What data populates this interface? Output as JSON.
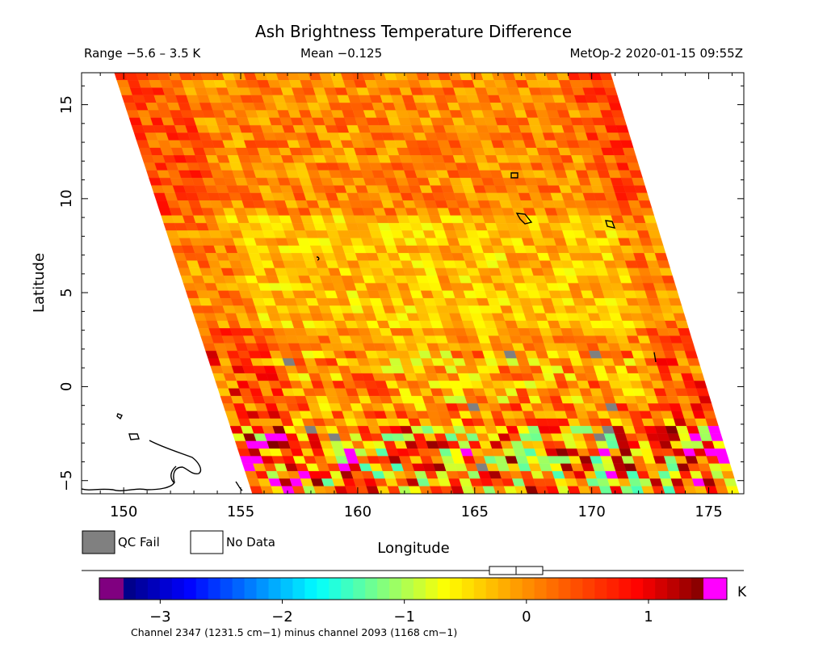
{
  "chart_data": {
    "type": "heatmap",
    "title": "Ash Brightness Temperature Difference",
    "subtitle_left": "Range −5.6 – 3.5 K",
    "subtitle_mid": "Mean −0.125",
    "subtitle_right": "MetOp-2 2020-01-15 09:55Z",
    "xlabel": "Longitude",
    "ylabel": "Latitude",
    "xlim": [
      148.2,
      176.5
    ],
    "ylim": [
      -5.7,
      16.7
    ],
    "x_ticks": [
      150,
      155,
      160,
      165,
      170,
      175
    ],
    "y_ticks": [
      -5,
      0,
      5,
      10,
      15
    ],
    "swath": {
      "lat_top": 16.7,
      "lat_bottom": -5.7,
      "lon_left_top": 149.6,
      "lon_right_top": 170.8,
      "lon_left_bottom": 155.5,
      "lon_right_bottom": 176.3,
      "rows": 56,
      "cols": 46,
      "mean": -0.125,
      "min": -5.6,
      "max": 3.5
    },
    "legend": [
      {
        "label": "QC Fail",
        "color": "#808080"
      },
      {
        "label": "No Data",
        "color": "#ffffff"
      }
    ],
    "colorbar": {
      "min": -3.3,
      "max": 1.45,
      "unit": "K",
      "tick_values": [
        -3,
        -2,
        -1,
        0,
        1
      ],
      "tick_labels": [
        "−3",
        "−2",
        "−1",
        "0",
        "1"
      ],
      "under_color": "#800080",
      "over_color": "#ff00ff",
      "stops": [
        "#00007f",
        "#0000ff",
        "#0080ff",
        "#00ffff",
        "#80ff80",
        "#ffff00",
        "#ffa500",
        "#ff5000",
        "#ff0000",
        "#800000"
      ],
      "caption": "Channel 2347 (1231.5 cm−1) minus channel 2093 (1168 cm−1)"
    }
  }
}
